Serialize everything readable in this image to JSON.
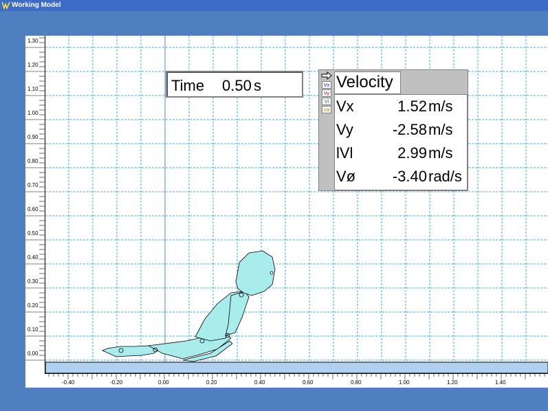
{
  "window": {
    "title": "Working Model",
    "icon": "working-model-icon"
  },
  "time_display": {
    "label": "Time",
    "value": "0.50",
    "unit": "s"
  },
  "velocity_meter": {
    "title": "Velocity",
    "legend": [
      "Vx",
      "Vy",
      "Vl",
      "Vø"
    ],
    "legend_colors": [
      "#0000ff",
      "#cc0000",
      "#008000",
      "#c08000"
    ],
    "rows": [
      {
        "label": "Vx",
        "value": "1.52",
        "unit": "m/s"
      },
      {
        "label": "Vy",
        "value": "-2.58",
        "unit": "m/s"
      },
      {
        "label": "lVl",
        "value": "2.99",
        "unit": "m/s"
      },
      {
        "label": "Vø",
        "value": "-3.40",
        "unit": "rad/s"
      }
    ]
  },
  "rulers": {
    "y_labels": [
      "1.30",
      "1.20",
      "1.10",
      "1.00",
      "0.90",
      "0.80",
      "0.70",
      "0.60",
      "0.50",
      "0.40",
      "0.30",
      "0.20",
      "0.10",
      "0.00"
    ],
    "x_labels": [
      "-0.40",
      "-0.20",
      "0.00",
      "0.20",
      "0.40",
      "0.60",
      "0.80",
      "1.00",
      "1.20",
      "1.40"
    ]
  },
  "colors": {
    "background": "#4f7fbf",
    "grid": "#3aaedc",
    "body_fill": "#a8ecec",
    "floor": "#b0d0f0"
  }
}
